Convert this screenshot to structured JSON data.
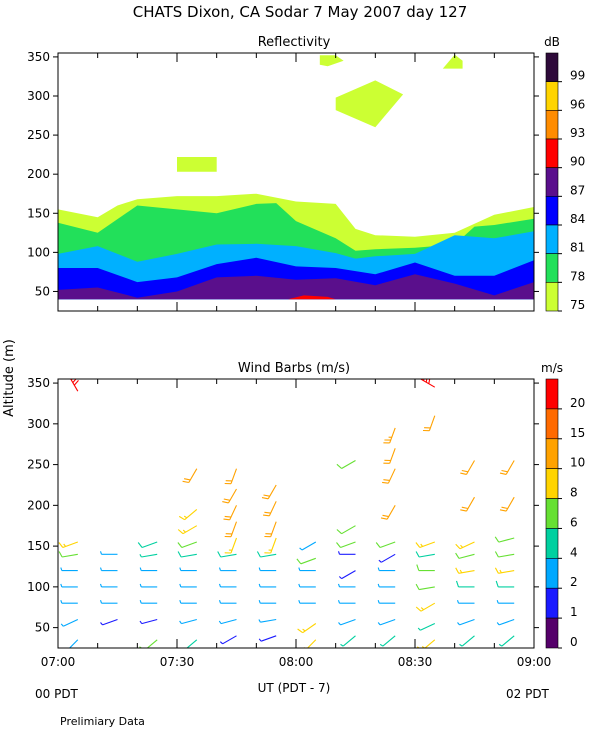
{
  "title": "CHATS Dixon, CA  Sodar    7 May 2007   day 127",
  "y_axis_label": "Altitude (m)",
  "x_axis_label": "UT  (PDT - 7)",
  "left_time_note": "00 PDT",
  "right_time_note": "02 PDT",
  "footer_note": "Prelimiary Data",
  "chart_data": [
    {
      "type": "heatmap",
      "title": "Reflectivity",
      "colorbar_label": "dB",
      "colorbar_ticks": [
        "99",
        "96",
        "93",
        "90",
        "87",
        "84",
        "81",
        "78",
        "75"
      ],
      "colorbar_colors": [
        "#2e0a3a",
        "#ffd400",
        "#ff8c00",
        "#ff0000",
        "#5a0f8c",
        "#0000ff",
        "#00b0ff",
        "#22e05a",
        "#ccff33"
      ],
      "x_ticks": [
        "07:00",
        "07:30",
        "08:00",
        "08:30",
        "09:00"
      ],
      "x_range_minutes": [
        0,
        120
      ],
      "y_ticks": [
        "50",
        "100",
        "150",
        "200",
        "250",
        "300",
        "350"
      ],
      "ylim": [
        25,
        355
      ],
      "bands": [
        {
          "level": "75",
          "color": "#ccff33",
          "lower": [
            [
              0,
              40
            ],
            [
              120,
              40
            ]
          ],
          "upper": [
            [
              0,
              155
            ],
            [
              10,
              145
            ],
            [
              15,
              160
            ],
            [
              20,
              168
            ],
            [
              30,
              172
            ],
            [
              40,
              172
            ],
            [
              50,
              175
            ],
            [
              60,
              165
            ],
            [
              70,
              162
            ],
            [
              75,
              130
            ],
            [
              80,
              122
            ],
            [
              90,
              120
            ],
            [
              100,
              125
            ],
            [
              110,
              148
            ],
            [
              120,
              158
            ]
          ]
        },
        {
          "level": "78",
          "color": "#22e05a",
          "lower": [
            [
              0,
              40
            ],
            [
              120,
              40
            ]
          ],
          "upper": [
            [
              0,
              138
            ],
            [
              10,
              125
            ],
            [
              20,
              160
            ],
            [
              40,
              150
            ],
            [
              50,
              162
            ],
            [
              55,
              163
            ],
            [
              60,
              140
            ],
            [
              70,
              118
            ],
            [
              75,
              102
            ],
            [
              80,
              104
            ],
            [
              90,
              106
            ],
            [
              100,
              110
            ],
            [
              105,
              133
            ],
            [
              110,
              135
            ],
            [
              120,
              143
            ]
          ]
        },
        {
          "level": "81",
          "color": "#00b0ff",
          "lower": [
            [
              0,
              40
            ],
            [
              120,
              40
            ]
          ],
          "upper": [
            [
              0,
              98
            ],
            [
              10,
              108
            ],
            [
              20,
              88
            ],
            [
              30,
              98
            ],
            [
              40,
              110
            ],
            [
              50,
              111
            ],
            [
              60,
              108
            ],
            [
              70,
              99
            ],
            [
              75,
              92
            ],
            [
              80,
              95
            ],
            [
              90,
              98
            ],
            [
              100,
              122
            ],
            [
              110,
              118
            ],
            [
              120,
              127
            ]
          ]
        },
        {
          "level": "84",
          "color": "#0000ff",
          "lower": [
            [
              0,
              40
            ],
            [
              120,
              40
            ]
          ],
          "upper": [
            [
              0,
              80
            ],
            [
              10,
              80
            ],
            [
              20,
              62
            ],
            [
              30,
              68
            ],
            [
              40,
              85
            ],
            [
              50,
              93
            ],
            [
              60,
              82
            ],
            [
              70,
              80
            ],
            [
              80,
              72
            ],
            [
              90,
              87
            ],
            [
              100,
              70
            ],
            [
              110,
              70
            ],
            [
              120,
              90
            ]
          ]
        },
        {
          "level": "87",
          "color": "#5a0f8c",
          "lower": [
            [
              0,
              40
            ],
            [
              120,
              40
            ]
          ],
          "upper": [
            [
              0,
              52
            ],
            [
              10,
              55
            ],
            [
              20,
              42
            ],
            [
              30,
              50
            ],
            [
              40,
              68
            ],
            [
              50,
              70
            ],
            [
              60,
              65
            ],
            [
              70,
              67
            ],
            [
              80,
              58
            ],
            [
              90,
              72
            ],
            [
              100,
              60
            ],
            [
              110,
              45
            ],
            [
              120,
              62
            ]
          ]
        }
      ],
      "patches": [
        {
          "level": "90",
          "color": "#ff0000",
          "points": [
            [
              58,
              40
            ],
            [
              62,
              45
            ],
            [
              68,
              43
            ],
            [
              70,
              40
            ]
          ]
        },
        {
          "level": "75",
          "color": "#ccff33",
          "points": [
            [
              30,
              222
            ],
            [
              40,
              222
            ],
            [
              40,
              203
            ],
            [
              30,
              203
            ]
          ]
        },
        {
          "level": "75",
          "color": "#ccff33",
          "points": [
            [
              70,
              298
            ],
            [
              80,
              320
            ],
            [
              87,
              302
            ],
            [
              80,
              260
            ],
            [
              70,
              282
            ]
          ]
        },
        {
          "level": "75",
          "color": "#ccff33",
          "points": [
            [
              66,
              352
            ],
            [
              70,
              352
            ],
            [
              72,
              345
            ],
            [
              68,
              338
            ],
            [
              66,
              340
            ]
          ]
        },
        {
          "level": "75",
          "color": "#ccff33",
          "points": [
            [
              97,
              335
            ],
            [
              100,
              353
            ],
            [
              102,
              345
            ],
            [
              102,
              335
            ]
          ]
        }
      ]
    },
    {
      "type": "scatter",
      "title": "Wind Barbs (m/s)",
      "colorbar_label": "m/s",
      "colorbar_ticks": [
        "20",
        "15",
        "10",
        "8",
        "6",
        "4",
        "2",
        "1",
        "0"
      ],
      "colorbar_colors": [
        "#ff0000",
        "#ff6a00",
        "#ffa200",
        "#ffd400",
        "#66e033",
        "#00d0a0",
        "#00a8ff",
        "#1a1aff",
        "#55006a"
      ],
      "x_ticks": [
        "07:00",
        "07:30",
        "08:00",
        "08:30",
        "09:00"
      ],
      "x_range_minutes": [
        0,
        120
      ],
      "y_ticks": [
        "50",
        "100",
        "150",
        "200",
        "250",
        "300",
        "350"
      ],
      "ylim": [
        25,
        355
      ],
      "columns_minutes": [
        5,
        15,
        25,
        35,
        45,
        55,
        65,
        75,
        85,
        95,
        105,
        115
      ],
      "profiles": [
        [
          [
            35,
            2,
            225
          ],
          [
            60,
            2,
            245
          ],
          [
            80,
            2,
            270
          ],
          [
            100,
            2,
            270
          ],
          [
            120,
            3,
            270
          ],
          [
            140,
            6,
            260
          ],
          [
            155,
            8,
            250
          ],
          [
            340,
            20,
            330
          ]
        ],
        [
          [
            60,
            1,
            250
          ],
          [
            80,
            2,
            270
          ],
          [
            100,
            3,
            270
          ],
          [
            120,
            3,
            270
          ],
          [
            140,
            3,
            270
          ]
        ],
        [
          [
            35,
            6,
            230
          ],
          [
            60,
            1,
            255
          ],
          [
            80,
            2,
            270
          ],
          [
            100,
            3,
            270
          ],
          [
            120,
            3,
            270
          ],
          [
            140,
            4,
            260
          ],
          [
            155,
            5,
            250
          ]
        ],
        [
          [
            35,
            4,
            230
          ],
          [
            60,
            2,
            255
          ],
          [
            80,
            2,
            270
          ],
          [
            100,
            3,
            270
          ],
          [
            120,
            3,
            270
          ],
          [
            140,
            5,
            260
          ],
          [
            155,
            6,
            250
          ],
          [
            175,
            8,
            240
          ],
          [
            195,
            9,
            230
          ],
          [
            245,
            10,
            210
          ]
        ],
        [
          [
            40,
            1,
            240
          ],
          [
            60,
            2,
            255
          ],
          [
            80,
            2,
            270
          ],
          [
            100,
            3,
            270
          ],
          [
            120,
            3,
            270
          ],
          [
            140,
            5,
            260
          ],
          [
            160,
            9,
            200
          ],
          [
            180,
            10,
            200
          ],
          [
            200,
            10,
            205
          ],
          [
            220,
            10,
            210
          ],
          [
            245,
            10,
            200
          ]
        ],
        [
          [
            40,
            1,
            250
          ],
          [
            60,
            2,
            260
          ],
          [
            80,
            3,
            270
          ],
          [
            100,
            3,
            270
          ],
          [
            120,
            3,
            270
          ],
          [
            140,
            5,
            260
          ],
          [
            160,
            9,
            200
          ],
          [
            180,
            10,
            200
          ],
          [
            205,
            10,
            205
          ],
          [
            225,
            10,
            210
          ]
        ],
        [
          [
            35,
            8,
            225
          ],
          [
            55,
            8,
            235
          ],
          [
            80,
            3,
            270
          ],
          [
            100,
            3,
            270
          ],
          [
            120,
            3,
            270
          ],
          [
            135,
            6,
            250
          ],
          [
            155,
            2,
            240
          ]
        ],
        [
          [
            40,
            4,
            230
          ],
          [
            60,
            2,
            250
          ],
          [
            80,
            3,
            270
          ],
          [
            100,
            3,
            270
          ],
          [
            120,
            1,
            240
          ],
          [
            140,
            1,
            270
          ],
          [
            155,
            6,
            250
          ],
          [
            175,
            6,
            240
          ],
          [
            255,
            6,
            240
          ]
        ],
        [
          [
            40,
            4,
            230
          ],
          [
            60,
            2,
            250
          ],
          [
            80,
            3,
            270
          ],
          [
            100,
            3,
            270
          ],
          [
            120,
            3,
            270
          ],
          [
            140,
            1,
            240
          ],
          [
            155,
            6,
            250
          ],
          [
            200,
            10,
            210
          ],
          [
            245,
            10,
            205
          ],
          [
            270,
            10,
            200
          ],
          [
            295,
            14,
            200
          ]
        ],
        [
          [
            35,
            8,
            230
          ],
          [
            55,
            4,
            245
          ],
          [
            80,
            8,
            240
          ],
          [
            100,
            6,
            260
          ],
          [
            120,
            6,
            270
          ],
          [
            140,
            5,
            260
          ],
          [
            155,
            8,
            250
          ],
          [
            310,
            10,
            200
          ],
          [
            345,
            20,
            300
          ]
        ],
        [
          [
            40,
            4,
            230
          ],
          [
            60,
            2,
            250
          ],
          [
            80,
            2,
            270
          ],
          [
            100,
            5,
            270
          ],
          [
            120,
            8,
            260
          ],
          [
            140,
            6,
            255
          ],
          [
            155,
            8,
            245
          ],
          [
            210,
            10,
            210
          ],
          [
            255,
            10,
            210
          ]
        ],
        [
          [
            40,
            4,
            230
          ],
          [
            60,
            2,
            250
          ],
          [
            80,
            2,
            270
          ],
          [
            100,
            5,
            270
          ],
          [
            120,
            8,
            260
          ],
          [
            140,
            6,
            260
          ],
          [
            160,
            6,
            255
          ],
          [
            210,
            10,
            210
          ],
          [
            255,
            10,
            210
          ]
        ]
      ]
    }
  ]
}
